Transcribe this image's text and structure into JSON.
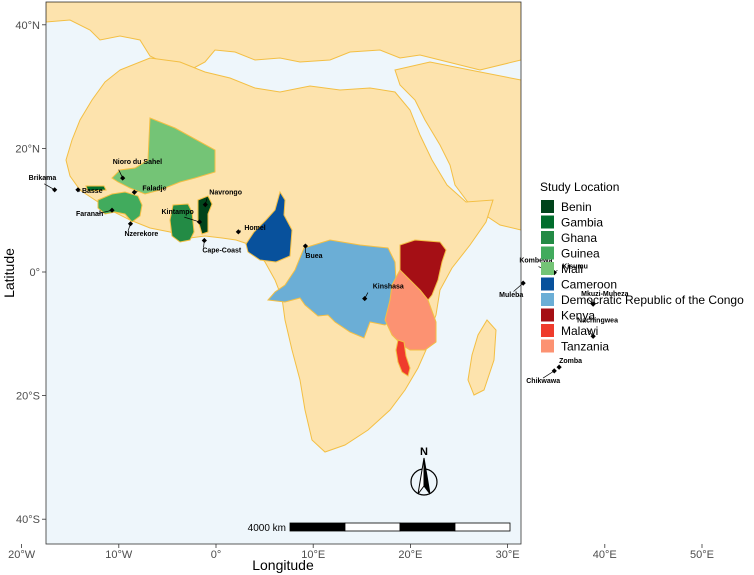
{
  "colors": {
    "ocean": "#eef6fb",
    "land": "#fde3ad",
    "border": "#f3bf44",
    "panel_border": "#333333",
    "Benin": "#00441b",
    "Gambia": "#006d2c",
    "Ghana": "#238b45",
    "Guinea": "#41ab5d",
    "Mali": "#74c476",
    "Cameroon": "#08519c",
    "DRC": "#6baed6",
    "Kenya": "#a50f15",
    "Malawi": "#ef3b2c",
    "Tanzania": "#fc9272"
  },
  "axes": {
    "x_title": "Longitude",
    "y_title": "Latitude",
    "x_ticks": [
      "20°W",
      "10°W",
      "0°",
      "10°E",
      "20°E",
      "30°E",
      "40°E",
      "50°E"
    ],
    "y_ticks": [
      "40°N",
      "20°N",
      "0°",
      "20°S",
      "40°S"
    ]
  },
  "legend": {
    "title": "Study Location",
    "entries": [
      {
        "label": "Benin",
        "color_key": "Benin"
      },
      {
        "label": "Gambia",
        "color_key": "Gambia"
      },
      {
        "label": "Ghana",
        "color_key": "Ghana"
      },
      {
        "label": "Guinea",
        "color_key": "Guinea"
      },
      {
        "label": "Mali",
        "color_key": "Mali"
      },
      {
        "label": "Cameroon",
        "color_key": "Cameroon"
      },
      {
        "label": "Democratic Republic of the Congo",
        "color_key": "DRC"
      },
      {
        "label": "Kenya",
        "color_key": "Kenya"
      },
      {
        "label": "Malawi",
        "color_key": "Malawi"
      },
      {
        "label": "Tanzania",
        "color_key": "Tanzania"
      }
    ]
  },
  "sites": [
    {
      "name": "Brikama",
      "lon": -16.6,
      "lat": 13.3
    },
    {
      "name": "Basse",
      "lon": -14.2,
      "lat": 13.3
    },
    {
      "name": "Nioro du Sahel",
      "lon": -9.6,
      "lat": 15.2
    },
    {
      "name": "Faladje",
      "lon": -8.4,
      "lat": 12.9
    },
    {
      "name": "Faranah",
      "lon": -10.7,
      "lat": 10.0
    },
    {
      "name": "Nzerekore",
      "lon": -8.8,
      "lat": 7.8
    },
    {
      "name": "Kintampo",
      "lon": -1.7,
      "lat": 8.1
    },
    {
      "name": "Navrongo",
      "lon": -1.1,
      "lat": 10.9
    },
    {
      "name": "Homel",
      "lon": 2.3,
      "lat": 6.5
    },
    {
      "name": "Cape-Coast",
      "lon": -1.2,
      "lat": 5.1
    },
    {
      "name": "Buea",
      "lon": 9.2,
      "lat": 4.2
    },
    {
      "name": "Kinshasa",
      "lon": 15.3,
      "lat": -4.3
    },
    {
      "name": "Kombewa",
      "lon": 34.5,
      "lat": -0.1
    },
    {
      "name": "Kisumu",
      "lon": 34.8,
      "lat": -0.1
    },
    {
      "name": "Muleba",
      "lon": 31.6,
      "lat": -1.8
    },
    {
      "name": "Mkuzi-Muheza",
      "lon": 38.8,
      "lat": -5.2
    },
    {
      "name": "Nachingwea",
      "lon": 38.8,
      "lat": -10.4
    },
    {
      "name": "Zomba",
      "lon": 35.3,
      "lat": -15.4
    },
    {
      "name": "Chikwawa",
      "lon": 34.8,
      "lat": -16.0
    }
  ],
  "scale_bar": {
    "label": "4000 km"
  },
  "north_arrow": {
    "label": "N"
  }
}
